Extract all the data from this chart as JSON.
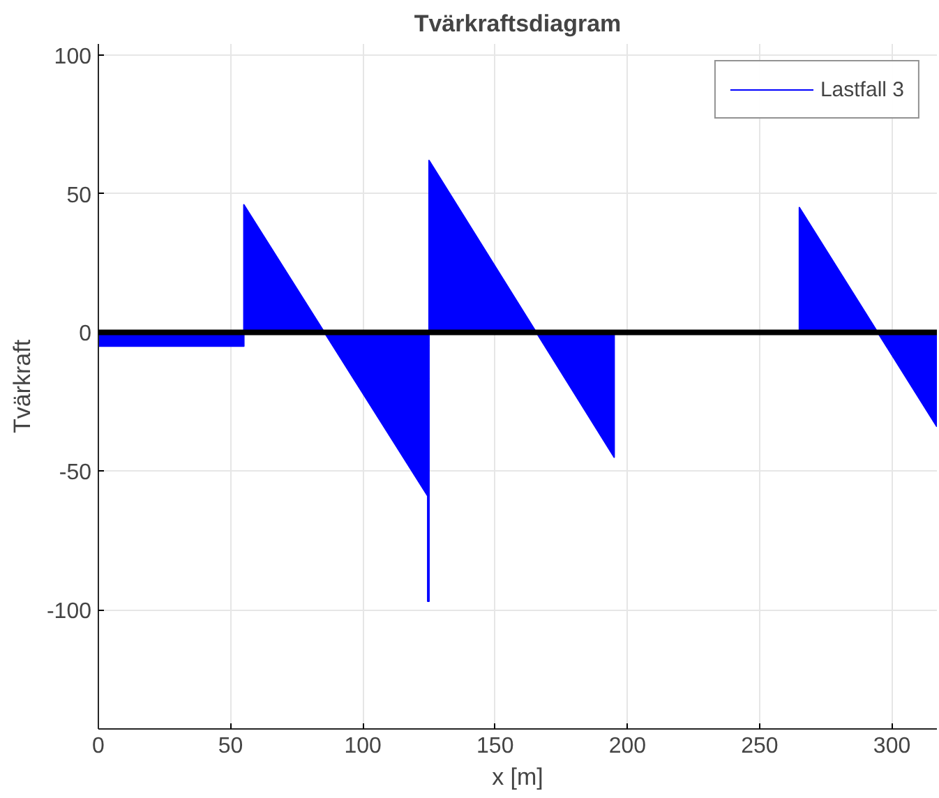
{
  "chart_data": {
    "type": "area",
    "title": "Tvärkraftsdiagram",
    "xlabel": "x [m]",
    "ylabel": "Tvärkraft",
    "series": [
      {
        "name": "Lastfall 3",
        "color": "#0000ff",
        "x": [
          0,
          55,
          55,
          124.5,
          124.5,
          125,
          125,
          195,
          195,
          265,
          265,
          317
        ],
        "values": [
          -5,
          -5,
          46,
          -59,
          -97,
          -97,
          62,
          -45,
          0,
          0,
          45,
          -34
        ]
      }
    ],
    "xlim": [
      0,
      317
    ],
    "xticks": [
      0,
      50,
      100,
      150,
      200,
      250,
      300
    ],
    "ylim": [
      -143,
      104
    ],
    "yticks": [
      -100,
      -50,
      0,
      50,
      100
    ],
    "ref_lines": [
      {
        "axis": "y",
        "value": 0,
        "color": "#000000"
      }
    ],
    "grid": true,
    "legend": "top right"
  }
}
